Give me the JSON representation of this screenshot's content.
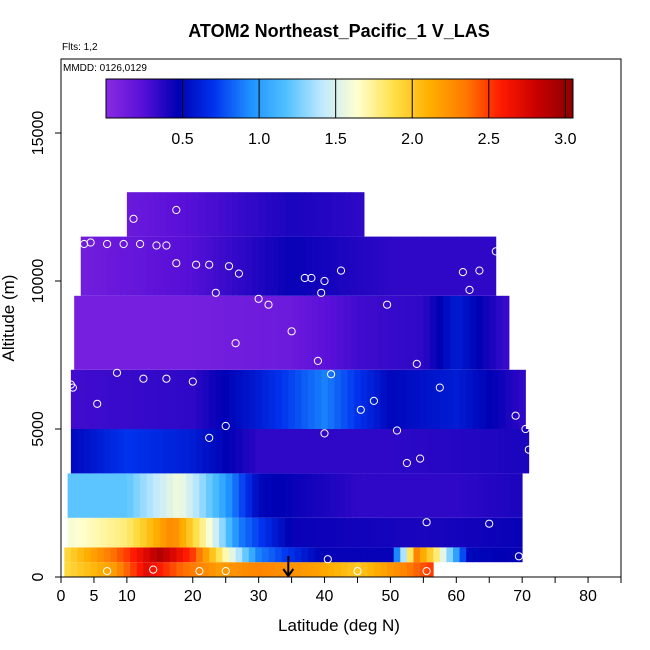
{
  "chart_data": {
    "type": "heatmap",
    "title": "ATOM2 Northeast_Pacific_1 V_LAS",
    "subtitle_flights": "Flts: 1,2",
    "subtitle_dates": "MMDD: 0126,0129",
    "xlabel": "Latitude (deg N)",
    "ylabel": "Altitude (m)",
    "xlim": [
      0,
      85
    ],
    "ylim": [
      0,
      17500
    ],
    "x_ticks": [
      0,
      5,
      10,
      20,
      30,
      40,
      50,
      60,
      70,
      80
    ],
    "x_minor_ticks": [
      25,
      35,
      45,
      55,
      65,
      75,
      85
    ],
    "y_ticks": [
      0,
      5000,
      10000,
      15000
    ],
    "colorbar": {
      "range": [
        0,
        3.05
      ],
      "ticks": [
        0.5,
        1.0,
        1.5,
        2.0,
        2.5,
        3.0
      ],
      "tick_labels": [
        "0.5",
        "1.0",
        "1.5",
        "2.0",
        "2.5",
        "3.0"
      ],
      "colors": [
        "#8a2be2",
        "#5a10d8",
        "#0000b4",
        "#0033ee",
        "#1e90ff",
        "#4fc0ff",
        "#bfe9ff",
        "#ffffd0",
        "#ffe14a",
        "#ffb000",
        "#ff7a00",
        "#ff1a00",
        "#c80000",
        "#8b0000"
      ]
    },
    "field_bands": [
      {
        "alt_min": 0,
        "alt_max": 500,
        "lat_min": 0.5,
        "lat_max": 56.5,
        "value_at_lat": [
          [
            0.5,
            1.9
          ],
          [
            8,
            2.2
          ],
          [
            13,
            2.7
          ],
          [
            18,
            2.4
          ],
          [
            24,
            2.2
          ],
          [
            30,
            2.3
          ],
          [
            38,
            2.2
          ],
          [
            45,
            2.0
          ],
          [
            52,
            2.3
          ],
          [
            56,
            2.5
          ]
        ]
      },
      {
        "alt_min": 500,
        "alt_max": 1000,
        "lat_min": 0.5,
        "lat_max": 70,
        "value_at_lat": [
          [
            0.5,
            1.9
          ],
          [
            10,
            2.5
          ],
          [
            15,
            2.9
          ],
          [
            20,
            2.5
          ],
          [
            25,
            1.7
          ],
          [
            30,
            0.9
          ],
          [
            40,
            0.45
          ],
          [
            50,
            0.45
          ],
          [
            54,
            2.3
          ],
          [
            57,
            1.8
          ],
          [
            62,
            0.5
          ],
          [
            70,
            0.45
          ]
        ]
      },
      {
        "alt_min": 1000,
        "alt_max": 2000,
        "lat_min": 1,
        "lat_max": 70,
        "value_at_lat": [
          [
            1,
            1.6
          ],
          [
            10,
            1.8
          ],
          [
            17,
            2.3
          ],
          [
            22,
            1.7
          ],
          [
            27,
            0.9
          ],
          [
            35,
            0.45
          ],
          [
            55,
            0.4
          ],
          [
            70,
            0.45
          ]
        ]
      },
      {
        "alt_min": 2000,
        "alt_max": 3500,
        "lat_min": 1,
        "lat_max": 70,
        "value_at_lat": [
          [
            1,
            1.2
          ],
          [
            10,
            1.2
          ],
          [
            18,
            1.6
          ],
          [
            24,
            1.1
          ],
          [
            30,
            0.5
          ],
          [
            45,
            0.35
          ],
          [
            60,
            0.35
          ],
          [
            70,
            0.4
          ]
        ]
      },
      {
        "alt_min": 3500,
        "alt_max": 5000,
        "lat_min": 1.5,
        "lat_max": 71,
        "value_at_lat": [
          [
            1.5,
            0.5
          ],
          [
            10,
            0.7
          ],
          [
            20,
            0.6
          ],
          [
            30,
            0.35
          ],
          [
            50,
            0.35
          ],
          [
            71,
            0.4
          ]
        ]
      },
      {
        "alt_min": 5000,
        "alt_max": 7000,
        "lat_min": 1.5,
        "lat_max": 70.5,
        "value_at_lat": [
          [
            1.5,
            0.3
          ],
          [
            20,
            0.35
          ],
          [
            30,
            0.6
          ],
          [
            40,
            0.9
          ],
          [
            50,
            0.5
          ],
          [
            60,
            0.6
          ],
          [
            70,
            0.35
          ]
        ]
      },
      {
        "alt_min": 7000,
        "alt_max": 9500,
        "lat_min": 2,
        "lat_max": 68,
        "value_at_lat": [
          [
            2,
            0.1
          ],
          [
            20,
            0.1
          ],
          [
            35,
            0.15
          ],
          [
            45,
            0.3
          ],
          [
            55,
            0.35
          ],
          [
            60,
            0.6
          ],
          [
            68,
            0.3
          ]
        ]
      },
      {
        "alt_min": 9500,
        "alt_max": 11500,
        "lat_min": 3,
        "lat_max": 66,
        "value_at_lat": [
          [
            3,
            0.12
          ],
          [
            20,
            0.25
          ],
          [
            35,
            0.45
          ],
          [
            50,
            0.35
          ],
          [
            66,
            0.35
          ]
        ]
      },
      {
        "alt_min": 11500,
        "alt_max": 13000,
        "lat_min": 10,
        "lat_max": 46,
        "value_at_lat": [
          [
            10,
            0.15
          ],
          [
            25,
            0.3
          ],
          [
            35,
            0.4
          ],
          [
            46,
            0.35
          ]
        ]
      }
    ],
    "sample_points": [
      {
        "lat": 7,
        "alt": 200
      },
      {
        "lat": 14,
        "alt": 250
      },
      {
        "lat": 21,
        "alt": 200
      },
      {
        "lat": 25,
        "alt": 200
      },
      {
        "lat": 40.5,
        "alt": 600
      },
      {
        "lat": 45,
        "alt": 200
      },
      {
        "lat": 55.5,
        "alt": 200
      },
      {
        "lat": 69.5,
        "alt": 700
      },
      {
        "lat": 65,
        "alt": 1800
      },
      {
        "lat": 55.5,
        "alt": 1850
      },
      {
        "lat": 52.5,
        "alt": 3850
      },
      {
        "lat": 54.5,
        "alt": 4000
      },
      {
        "lat": 71,
        "alt": 4300
      },
      {
        "lat": 40,
        "alt": 4850
      },
      {
        "lat": 51,
        "alt": 4950
      },
      {
        "lat": 22.5,
        "alt": 4700
      },
      {
        "lat": 25,
        "alt": 5100
      },
      {
        "lat": 70.5,
        "alt": 5000
      },
      {
        "lat": 69,
        "alt": 5450
      },
      {
        "lat": 5.5,
        "alt": 5850
      },
      {
        "lat": 45.5,
        "alt": 5650
      },
      {
        "lat": 47.5,
        "alt": 5950
      },
      {
        "lat": 57.5,
        "alt": 6400
      },
      {
        "lat": 1.5,
        "alt": 6500
      },
      {
        "lat": 1.8,
        "alt": 6400
      },
      {
        "lat": 8.5,
        "alt": 6900
      },
      {
        "lat": 12.5,
        "alt": 6700
      },
      {
        "lat": 16,
        "alt": 6700
      },
      {
        "lat": 20,
        "alt": 6600
      },
      {
        "lat": 41,
        "alt": 6850
      },
      {
        "lat": 39,
        "alt": 7300
      },
      {
        "lat": 54,
        "alt": 7200
      },
      {
        "lat": 26.5,
        "alt": 7900
      },
      {
        "lat": 35,
        "alt": 8300
      },
      {
        "lat": 30,
        "alt": 9400
      },
      {
        "lat": 31.5,
        "alt": 9200
      },
      {
        "lat": 23.5,
        "alt": 9600
      },
      {
        "lat": 39.5,
        "alt": 9600
      },
      {
        "lat": 40,
        "alt": 10000
      },
      {
        "lat": 37,
        "alt": 10100
      },
      {
        "lat": 38,
        "alt": 10100
      },
      {
        "lat": 42.5,
        "alt": 10350
      },
      {
        "lat": 49.5,
        "alt": 9200
      },
      {
        "lat": 62,
        "alt": 9700
      },
      {
        "lat": 61,
        "alt": 10300
      },
      {
        "lat": 63.5,
        "alt": 10350
      },
      {
        "lat": 17.5,
        "alt": 10600
      },
      {
        "lat": 20.5,
        "alt": 10550
      },
      {
        "lat": 22.5,
        "alt": 10550
      },
      {
        "lat": 25.5,
        "alt": 10500
      },
      {
        "lat": 27,
        "alt": 10250
      },
      {
        "lat": 3.5,
        "alt": 11250
      },
      {
        "lat": 4.5,
        "alt": 11300
      },
      {
        "lat": 7,
        "alt": 11250
      },
      {
        "lat": 9.5,
        "alt": 11250
      },
      {
        "lat": 12,
        "alt": 11250
      },
      {
        "lat": 14.5,
        "alt": 11200
      },
      {
        "lat": 16,
        "alt": 11200
      },
      {
        "lat": 66,
        "alt": 11000
      },
      {
        "lat": 11,
        "alt": 12100
      },
      {
        "lat": 17.5,
        "alt": 12400
      }
    ],
    "marker_arrow_lat": 34.5
  }
}
